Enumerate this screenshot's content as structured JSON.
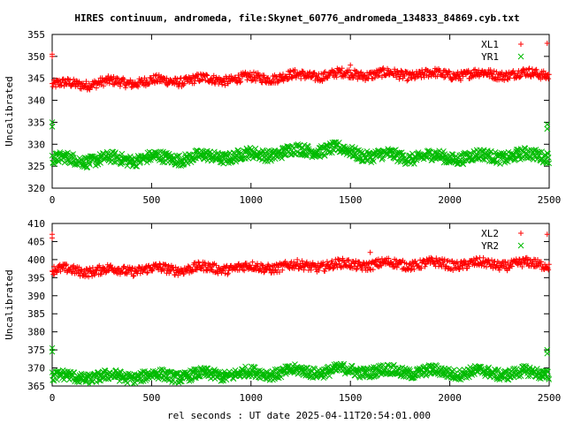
{
  "page": {
    "title": "HIRES continuum, andromeda, file:Skynet_60776_andromeda_134833_84869.cyb.txt",
    "xlabel": "rel seconds : UT date 2025-04-11T20:54:01.000"
  },
  "chart_data": [
    {
      "type": "scatter",
      "ylabel": "Uncalibrated",
      "xlim": [
        0,
        2500
      ],
      "ylim": [
        320,
        355
      ],
      "xticks": [
        "0",
        "500",
        "1000",
        "1500",
        "2000",
        "2500"
      ],
      "yticks": [
        "320",
        "325",
        "330",
        "335",
        "340",
        "345",
        "350",
        "355"
      ],
      "legend_position": "top-right",
      "series": [
        {
          "name": "XL1",
          "marker": "+",
          "color": "#ff0000",
          "baseline_points": [
            [
              0,
              343.5
            ],
            [
              250,
              344.0
            ],
            [
              500,
              344.3
            ],
            [
              750,
              344.7
            ],
            [
              1000,
              345.0
            ],
            [
              1250,
              345.6
            ],
            [
              1500,
              346.0
            ],
            [
              1750,
              345.9
            ],
            [
              2000,
              345.9
            ],
            [
              2250,
              346.0
            ],
            [
              2500,
              346.0
            ]
          ],
          "spread": 1.3,
          "outliers": [
            [
              0,
              350.5
            ],
            [
              0,
              350.0
            ],
            [
              2490,
              353.0
            ],
            [
              1500,
              348.0
            ]
          ]
        },
        {
          "name": "YR1",
          "marker": "x",
          "color": "#00bb00",
          "baseline_points": [
            [
              0,
              326.5
            ],
            [
              250,
              326.5
            ],
            [
              500,
              326.8
            ],
            [
              750,
              327.0
            ],
            [
              1000,
              327.5
            ],
            [
              1250,
              328.5
            ],
            [
              1400,
              329.0
            ],
            [
              1600,
              327.5
            ],
            [
              1750,
              327.2
            ],
            [
              2000,
              327.0
            ],
            [
              2250,
              327.3
            ],
            [
              2500,
              327.5
            ]
          ],
          "spread": 1.6,
          "outliers": [
            [
              0,
              335.0
            ],
            [
              0,
              334.0
            ],
            [
              2490,
              334.5
            ],
            [
              2490,
              333.5
            ]
          ]
        }
      ]
    },
    {
      "type": "scatter",
      "ylabel": "Uncalibrated",
      "xlim": [
        0,
        2500
      ],
      "ylim": [
        365,
        410
      ],
      "xticks": [
        "0",
        "500",
        "1000",
        "1500",
        "2000",
        "2500"
      ],
      "yticks": [
        "365",
        "370",
        "375",
        "380",
        "385",
        "390",
        "395",
        "400",
        "405",
        "410"
      ],
      "legend_position": "top-right",
      "series": [
        {
          "name": "XL2",
          "marker": "+",
          "color": "#ff0000",
          "baseline_points": [
            [
              0,
              397.0
            ],
            [
              250,
              397.0
            ],
            [
              500,
              397.3
            ],
            [
              750,
              397.6
            ],
            [
              1000,
              397.8
            ],
            [
              1250,
              398.2
            ],
            [
              1500,
              398.6
            ],
            [
              1750,
              398.8
            ],
            [
              2000,
              398.8
            ],
            [
              2250,
              398.7
            ],
            [
              2500,
              398.8
            ]
          ],
          "spread": 1.6,
          "outliers": [
            [
              0,
              407.0
            ],
            [
              0,
              406.0
            ],
            [
              2490,
              407.0
            ],
            [
              1600,
              402.0
            ]
          ]
        },
        {
          "name": "YR2",
          "marker": "x",
          "color": "#00bb00",
          "baseline_points": [
            [
              0,
              367.5
            ],
            [
              250,
              367.5
            ],
            [
              500,
              367.8
            ],
            [
              750,
              368.0
            ],
            [
              1000,
              368.5
            ],
            [
              1250,
              369.0
            ],
            [
              1500,
              369.3
            ],
            [
              1750,
              369.0
            ],
            [
              2000,
              368.8
            ],
            [
              2250,
              368.6
            ],
            [
              2500,
              368.5
            ]
          ],
          "spread": 1.8,
          "outliers": [
            [
              0,
              375.5
            ],
            [
              0,
              374.5
            ],
            [
              2490,
              375.0
            ],
            [
              2490,
              374.0
            ]
          ]
        }
      ]
    }
  ]
}
